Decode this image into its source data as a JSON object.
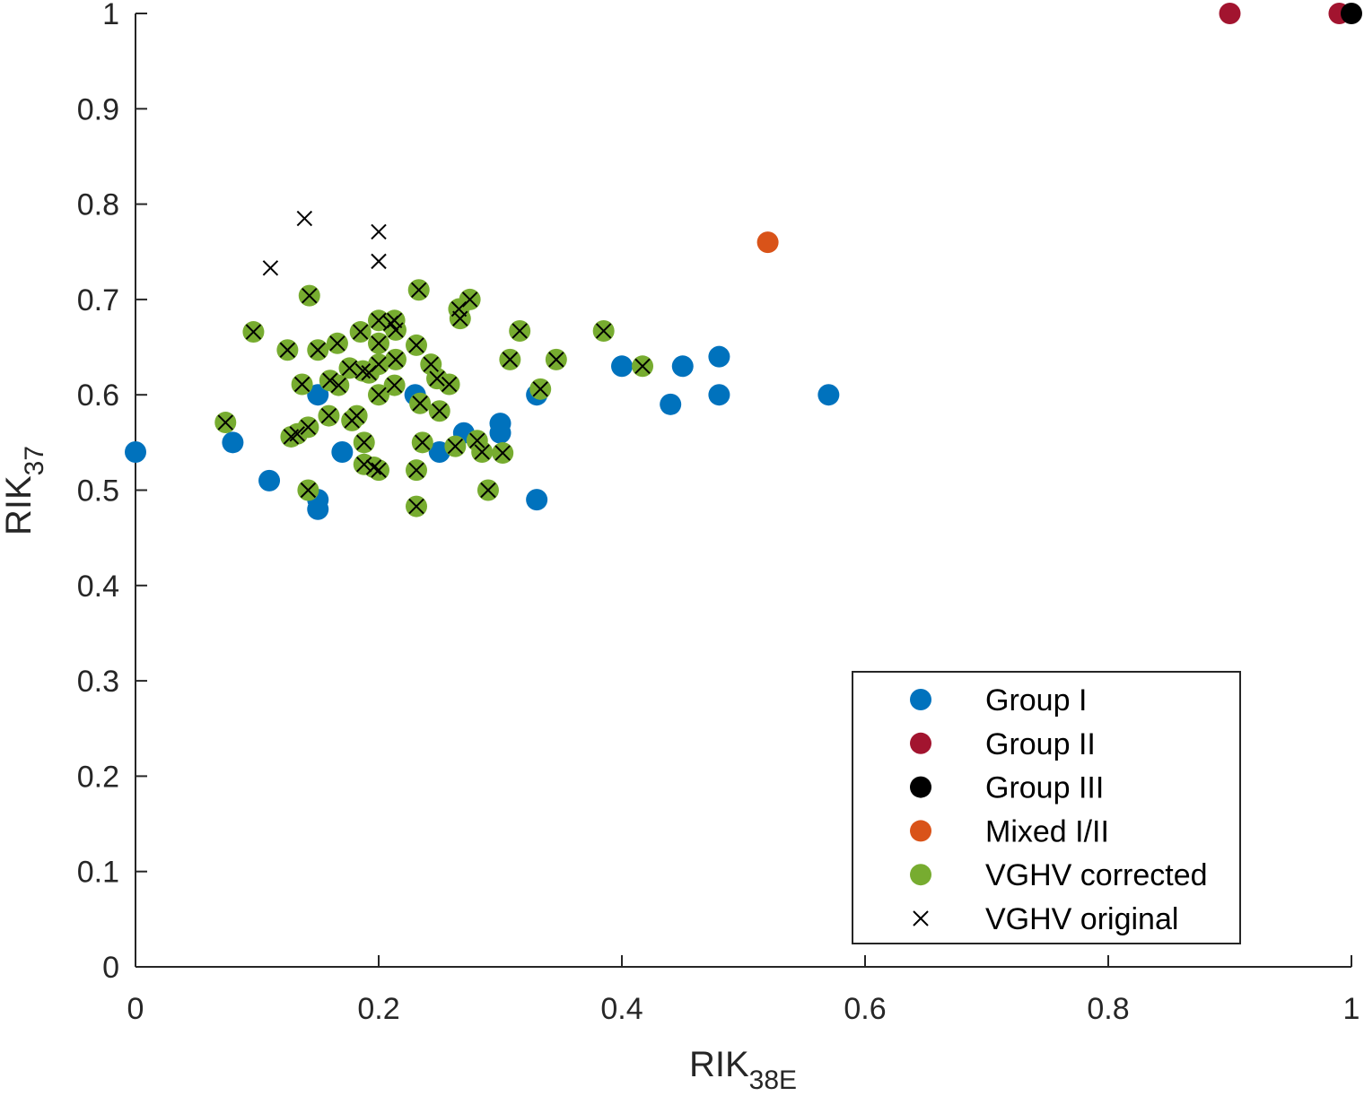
{
  "chart_data": {
    "type": "scatter",
    "xlabel": {
      "main": "RIK",
      "sub": "38E"
    },
    "ylabel": {
      "main": "RIK",
      "sub": "37"
    },
    "xlim": [
      0,
      1
    ],
    "ylim": [
      0,
      1
    ],
    "xticks": [
      "0",
      "0.2",
      "0.4",
      "0.6",
      "0.8",
      "1"
    ],
    "xtick_values": [
      0,
      0.2,
      0.4,
      0.6,
      0.8,
      1
    ],
    "yticks": [
      "0",
      "0.1",
      "0.2",
      "0.3",
      "0.4",
      "0.5",
      "0.6",
      "0.7",
      "0.8",
      "0.9",
      "1"
    ],
    "ytick_values": [
      0,
      0.1,
      0.2,
      0.3,
      0.4,
      0.5,
      0.6,
      0.7,
      0.8,
      0.9,
      1
    ],
    "legend_position": "bottom-right",
    "series": [
      {
        "name": "Group I",
        "marker": "dot",
        "color": "#0072BD",
        "points": [
          [
            0.0,
            0.54
          ],
          [
            0.08,
            0.55
          ],
          [
            0.11,
            0.51
          ],
          [
            0.15,
            0.49
          ],
          [
            0.15,
            0.48
          ],
          [
            0.15,
            0.6
          ],
          [
            0.17,
            0.54
          ],
          [
            0.23,
            0.6
          ],
          [
            0.25,
            0.54
          ],
          [
            0.27,
            0.56
          ],
          [
            0.3,
            0.57
          ],
          [
            0.3,
            0.56
          ],
          [
            0.33,
            0.6
          ],
          [
            0.33,
            0.49
          ],
          [
            0.4,
            0.63
          ],
          [
            0.44,
            0.59
          ],
          [
            0.45,
            0.63
          ],
          [
            0.48,
            0.64
          ],
          [
            0.48,
            0.6
          ],
          [
            0.57,
            0.6
          ]
        ]
      },
      {
        "name": "Group II",
        "marker": "dot",
        "color": "#A2142F",
        "points": [
          [
            0.9,
            1.0
          ],
          [
            0.99,
            1.0
          ]
        ]
      },
      {
        "name": "Group III",
        "marker": "dot",
        "color": "#000000",
        "points": [
          [
            1.0,
            1.0
          ]
        ]
      },
      {
        "name": "Mixed I/II",
        "marker": "dot",
        "color": "#D95319",
        "points": [
          [
            0.52,
            0.76
          ]
        ]
      },
      {
        "name": "VGHV corrected",
        "marker": "dot",
        "color": "#77AC30",
        "points": [
          [
            0.074,
            0.571
          ],
          [
            0.097,
            0.666
          ],
          [
            0.125,
            0.647
          ],
          [
            0.128,
            0.556
          ],
          [
            0.133,
            0.559
          ],
          [
            0.137,
            0.611
          ],
          [
            0.142,
            0.566
          ],
          [
            0.142,
            0.5
          ],
          [
            0.143,
            0.704
          ],
          [
            0.15,
            0.647
          ],
          [
            0.159,
            0.578
          ],
          [
            0.16,
            0.615
          ],
          [
            0.166,
            0.654
          ],
          [
            0.167,
            0.61
          ],
          [
            0.176,
            0.628
          ],
          [
            0.178,
            0.573
          ],
          [
            0.182,
            0.578
          ],
          [
            0.185,
            0.666
          ],
          [
            0.187,
            0.625
          ],
          [
            0.188,
            0.55
          ],
          [
            0.188,
            0.527
          ],
          [
            0.192,
            0.623
          ],
          [
            0.196,
            0.524
          ],
          [
            0.2,
            0.678
          ],
          [
            0.2,
            0.654
          ],
          [
            0.2,
            0.632
          ],
          [
            0.2,
            0.6
          ],
          [
            0.2,
            0.521
          ],
          [
            0.21,
            0.675
          ],
          [
            0.213,
            0.678
          ],
          [
            0.214,
            0.637
          ],
          [
            0.213,
            0.61
          ],
          [
            0.214,
            0.668
          ],
          [
            0.231,
            0.652
          ],
          [
            0.231,
            0.521
          ],
          [
            0.231,
            0.483
          ],
          [
            0.233,
            0.71
          ],
          [
            0.234,
            0.591
          ],
          [
            0.236,
            0.55
          ],
          [
            0.243,
            0.632
          ],
          [
            0.248,
            0.617
          ],
          [
            0.25,
            0.583
          ],
          [
            0.258,
            0.611
          ],
          [
            0.263,
            0.546
          ],
          [
            0.266,
            0.69
          ],
          [
            0.267,
            0.68
          ],
          [
            0.275,
            0.7
          ],
          [
            0.281,
            0.552
          ],
          [
            0.285,
            0.54
          ],
          [
            0.29,
            0.5
          ],
          [
            0.302,
            0.539
          ],
          [
            0.308,
            0.637
          ],
          [
            0.316,
            0.667
          ],
          [
            0.333,
            0.606
          ],
          [
            0.346,
            0.637
          ],
          [
            0.385,
            0.667
          ],
          [
            0.417,
            0.63
          ]
        ]
      },
      {
        "name": "VGHV original",
        "marker": "x",
        "color": "#000000",
        "points": [
          [
            0.074,
            0.571
          ],
          [
            0.097,
            0.666
          ],
          [
            0.111,
            0.733
          ],
          [
            0.125,
            0.647
          ],
          [
            0.128,
            0.556
          ],
          [
            0.133,
            0.559
          ],
          [
            0.137,
            0.611
          ],
          [
            0.139,
            0.785
          ],
          [
            0.142,
            0.566
          ],
          [
            0.142,
            0.5
          ],
          [
            0.143,
            0.704
          ],
          [
            0.15,
            0.647
          ],
          [
            0.159,
            0.578
          ],
          [
            0.16,
            0.615
          ],
          [
            0.166,
            0.654
          ],
          [
            0.167,
            0.61
          ],
          [
            0.176,
            0.628
          ],
          [
            0.178,
            0.573
          ],
          [
            0.182,
            0.578
          ],
          [
            0.185,
            0.666
          ],
          [
            0.187,
            0.625
          ],
          [
            0.188,
            0.55
          ],
          [
            0.188,
            0.527
          ],
          [
            0.192,
            0.623
          ],
          [
            0.196,
            0.524
          ],
          [
            0.2,
            0.771
          ],
          [
            0.2,
            0.74
          ],
          [
            0.2,
            0.678
          ],
          [
            0.2,
            0.654
          ],
          [
            0.2,
            0.632
          ],
          [
            0.2,
            0.6
          ],
          [
            0.2,
            0.521
          ],
          [
            0.21,
            0.675
          ],
          [
            0.213,
            0.678
          ],
          [
            0.214,
            0.637
          ],
          [
            0.213,
            0.61
          ],
          [
            0.214,
            0.668
          ],
          [
            0.231,
            0.652
          ],
          [
            0.231,
            0.521
          ],
          [
            0.231,
            0.483
          ],
          [
            0.233,
            0.71
          ],
          [
            0.234,
            0.591
          ],
          [
            0.236,
            0.55
          ],
          [
            0.243,
            0.632
          ],
          [
            0.248,
            0.617
          ],
          [
            0.25,
            0.583
          ],
          [
            0.258,
            0.611
          ],
          [
            0.263,
            0.546
          ],
          [
            0.266,
            0.69
          ],
          [
            0.267,
            0.68
          ],
          [
            0.275,
            0.7
          ],
          [
            0.281,
            0.552
          ],
          [
            0.285,
            0.54
          ],
          [
            0.29,
            0.5
          ],
          [
            0.302,
            0.539
          ],
          [
            0.308,
            0.637
          ],
          [
            0.316,
            0.667
          ],
          [
            0.333,
            0.606
          ],
          [
            0.346,
            0.637
          ],
          [
            0.385,
            0.667
          ],
          [
            0.417,
            0.63
          ]
        ]
      }
    ]
  }
}
